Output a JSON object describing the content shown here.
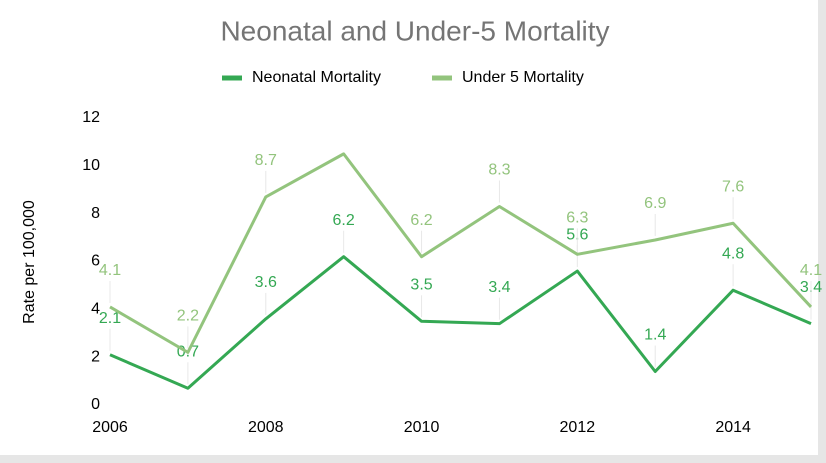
{
  "chart_data": {
    "type": "line",
    "title": "Neonatal and Under-5 Mortality",
    "y_label": "Rate per 100,000",
    "x": [
      2006,
      2007,
      2008,
      2009,
      2010,
      2011,
      2012,
      2013,
      2014,
      2015
    ],
    "series": [
      {
        "name": "Neonatal Mortality",
        "color": "#34a853",
        "values": [
          2.1,
          0.7,
          3.6,
          6.2,
          3.5,
          3.4,
          5.6,
          1.4,
          4.8,
          3.4
        ]
      },
      {
        "name": "Under 5 Mortality",
        "color": "#93c47d",
        "values": [
          4.1,
          2.2,
          8.7,
          10.5,
          6.2,
          8.3,
          6.3,
          6.9,
          7.6,
          4.1
        ],
        "value_labels": [
          "4.1",
          "2.2",
          "8.7",
          null,
          "6.2",
          "8.3",
          "6.3",
          "6.9",
          "7.6",
          "4.1"
        ]
      }
    ],
    "xlim": [
      2006,
      2015
    ],
    "xticks": [
      2006,
      2008,
      2010,
      2012,
      2014
    ],
    "ylim": [
      0,
      12
    ],
    "yticks": [
      0,
      2,
      4,
      6,
      8,
      10,
      12
    ],
    "legend": "top"
  }
}
